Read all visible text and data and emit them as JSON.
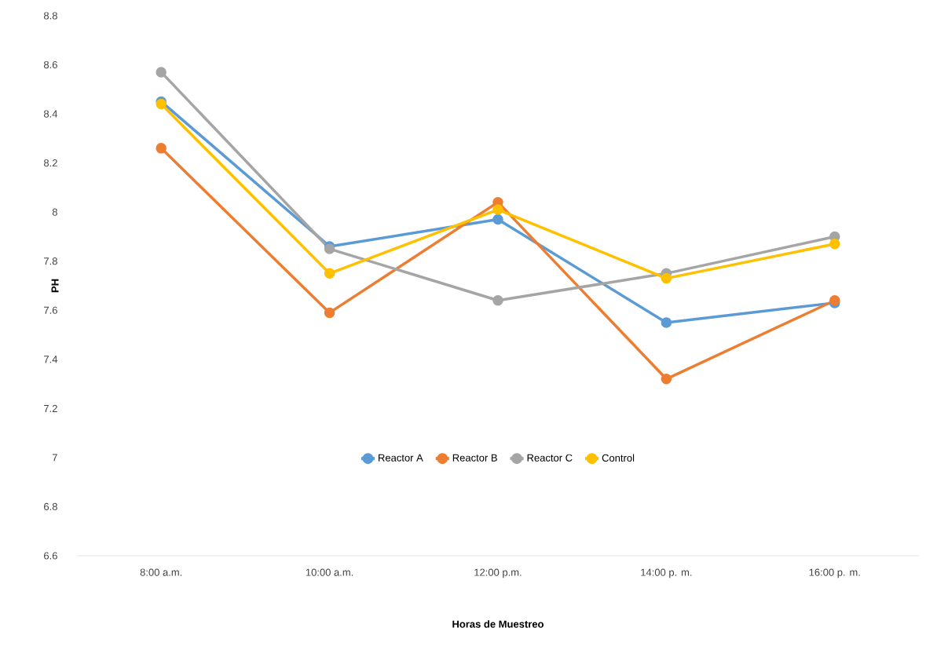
{
  "chart_data": {
    "type": "line",
    "xlabel": "Horas de Muestreo",
    "ylabel": "PH",
    "categories": [
      "8:00 a.m.",
      "10:00 a.m.",
      "12:00 p.m.",
      "14:00 p. m.",
      "16:00 p. m."
    ],
    "series": [
      {
        "name": "Reactor A",
        "color": "#5b9bd5",
        "values": [
          8.45,
          7.86,
          7.97,
          7.55,
          7.63
        ]
      },
      {
        "name": "Reactor B",
        "color": "#ed7d31",
        "values": [
          8.26,
          7.59,
          8.04,
          7.32,
          7.64
        ]
      },
      {
        "name": "Reactor C",
        "color": "#a5a5a5",
        "values": [
          8.57,
          7.85,
          7.64,
          7.75,
          7.9
        ]
      },
      {
        "name": "Control",
        "color": "#ffc000",
        "values": [
          8.44,
          7.75,
          8.01,
          7.73,
          7.87
        ]
      }
    ],
    "ylim": [
      6.6,
      8.8
    ],
    "yticks": [
      6.6,
      6.8,
      7,
      7.2,
      7.4,
      7.6,
      7.8,
      8,
      8.2,
      8.4,
      8.6,
      8.8
    ],
    "grid": false,
    "legend": "bottom",
    "marker": "circle",
    "line_style": "solid"
  }
}
